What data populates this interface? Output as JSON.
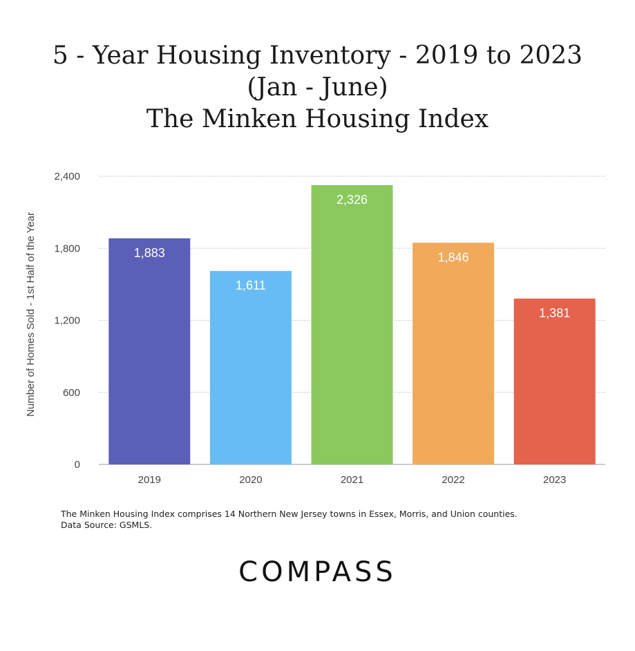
{
  "page": {
    "logo": "COMPASS"
  },
  "chart_data": {
    "type": "bar",
    "title": "5 - Year Housing Inventory - 2019 to 2023",
    "subtitle": "(Jan - June)",
    "subtitle2": "The Minken Housing Index",
    "xlabel": "",
    "ylabel": "Number of Homes Sold - 1st Half of the Year",
    "categories": [
      "2019",
      "2020",
      "2021",
      "2022",
      "2023"
    ],
    "values": [
      1883,
      1611,
      2326,
      1846,
      1381
    ],
    "value_labels": [
      "1,883",
      "1,611",
      "2,326",
      "1,846",
      "1,381"
    ],
    "bar_colors": [
      "#5b5fb8",
      "#67bdf3",
      "#8bc95f",
      "#f0aa5a",
      "#e5624c"
    ],
    "ylim": [
      0,
      2400
    ],
    "yticks": [
      0,
      600,
      1200,
      1800,
      2400
    ],
    "ytick_labels": [
      "0",
      "600",
      "1,200",
      "1,800",
      "2,400"
    ],
    "grid": true,
    "legend": "none",
    "notes": [
      "The Minken Housing Index comprises 14 Northern New Jersey towns in Essex, Morris, and Union counties.",
      "Data Source: GSMLS."
    ]
  }
}
